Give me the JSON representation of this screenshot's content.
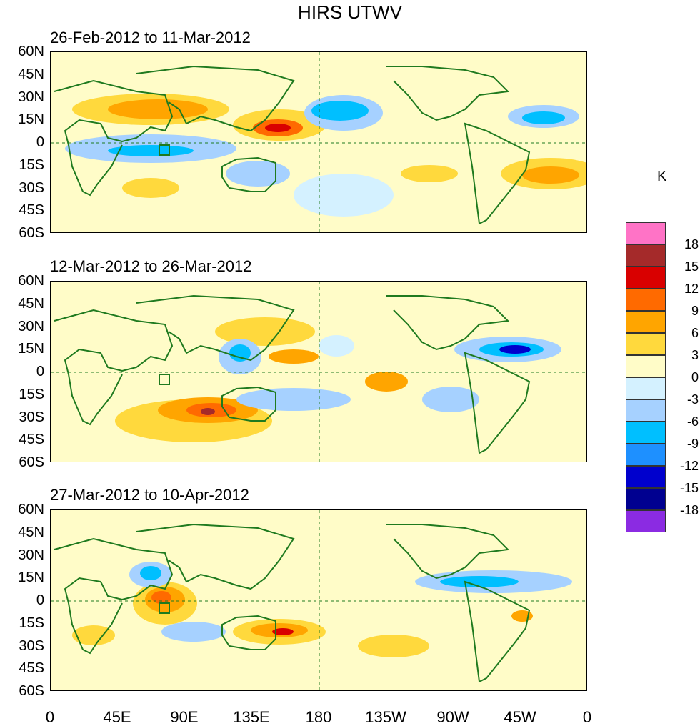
{
  "title": "HIRS UTWV",
  "panels": [
    {
      "subtitle": "26-Feb-2012 to 11-Mar-2012"
    },
    {
      "subtitle": "12-Mar-2012 to 26-Mar-2012"
    },
    {
      "subtitle": "27-Mar-2012 to 10-Apr-2012"
    }
  ],
  "lat_labels": [
    "60N",
    "45N",
    "30N",
    "15N",
    "0",
    "15S",
    "30S",
    "45S",
    "60S"
  ],
  "lon_labels": [
    "0",
    "45E",
    "90E",
    "135E",
    "180",
    "135W",
    "90W",
    "45W",
    "0"
  ],
  "colorbar": {
    "unit": "K",
    "labels": [
      "18",
      "15",
      "12",
      "9",
      "6",
      "3",
      "0",
      "-3",
      "-6",
      "-9",
      "-12",
      "-15",
      "-18"
    ],
    "colors": [
      "#ff73c6",
      "#a52a2a",
      "#d90000",
      "#ff6a00",
      "#ffa500",
      "#ffd93d",
      "#fffcc8",
      "#d4f1ff",
      "#a6d1ff",
      "#00bfff",
      "#1e90ff",
      "#0000cd",
      "#000090",
      "#8b2be2"
    ]
  },
  "legend_icons": [
    "coastline-icon"
  ]
}
